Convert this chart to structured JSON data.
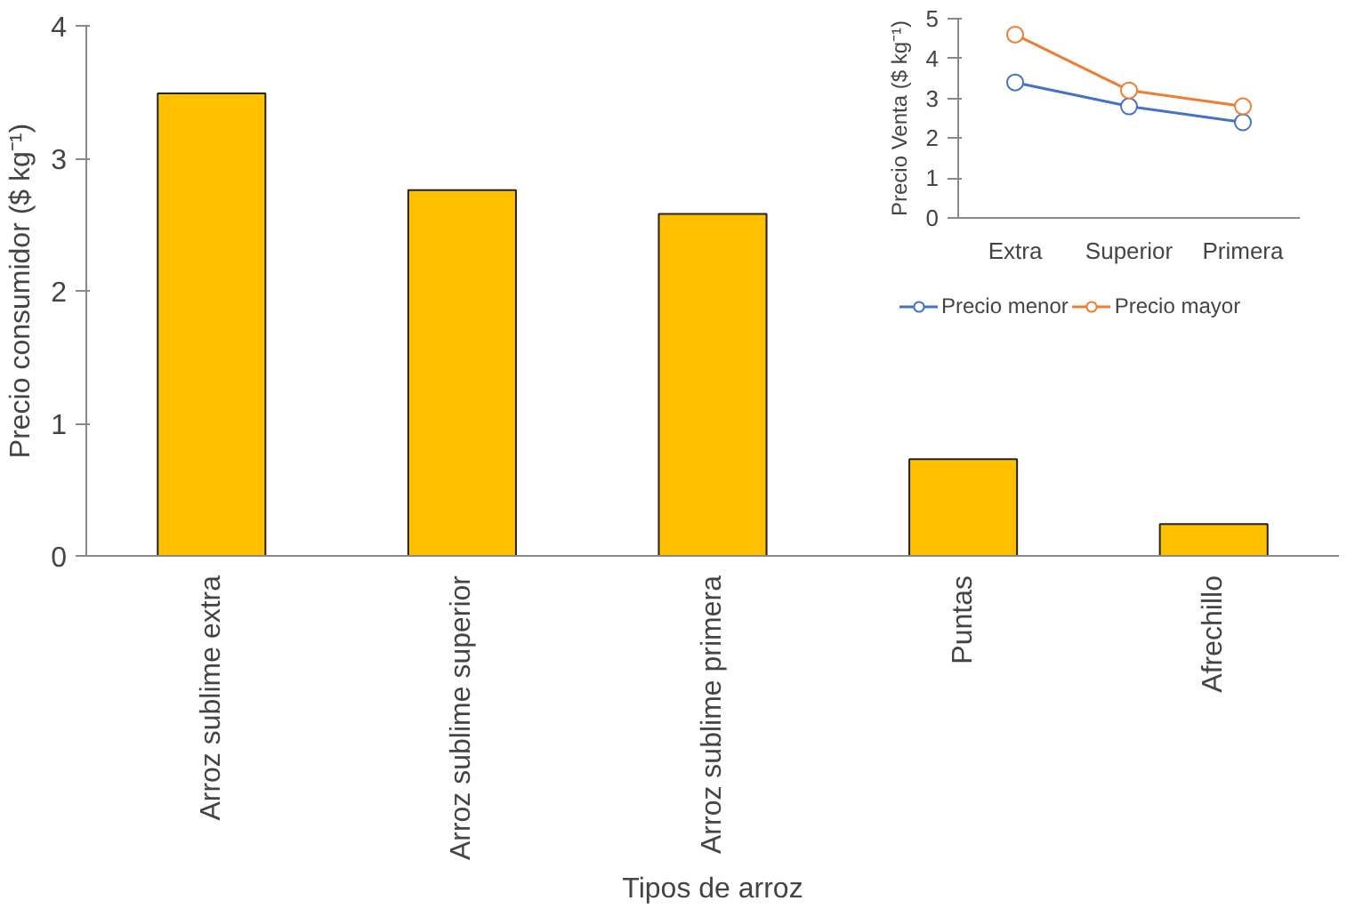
{
  "chart_data": [
    {
      "type": "bar",
      "xlabel": "Tipos de arroz",
      "ylabel": "Precio consumidor ($ kg⁻¹)",
      "categories": [
        "Arroz sublime extra",
        "Arroz sublime superior",
        "Arroz sublime primera",
        "Puntas",
        "Afrechillo"
      ],
      "values": [
        3.49,
        2.76,
        2.58,
        0.73,
        0.24
      ],
      "color": "#ffc000",
      "ylim": [
        0,
        4
      ],
      "yticks": [
        0,
        1,
        2,
        3,
        4
      ]
    },
    {
      "type": "line",
      "ylabel": "Precio Venta ($ kg⁻¹)",
      "categories": [
        "Extra",
        "Superior",
        "Primera"
      ],
      "series": [
        {
          "name": "Precio menor",
          "color": "#4472c4",
          "values": [
            3.4,
            2.8,
            2.4
          ]
        },
        {
          "name": "Precio mayor",
          "color": "#ed7d31",
          "values": [
            4.6,
            3.2,
            2.8
          ]
        }
      ],
      "ylim": [
        0,
        5
      ],
      "yticks": [
        0,
        1,
        2,
        3,
        4,
        5
      ],
      "legend": "bottom",
      "marker": "circle"
    }
  ]
}
